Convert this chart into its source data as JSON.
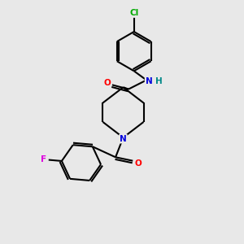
{
  "background_color": "#e8e8e8",
  "bond_color": "#000000",
  "atom_colors": {
    "N": "#0000dd",
    "O": "#ff0000",
    "Cl": "#00aa00",
    "F": "#dd00dd",
    "C": "#000000",
    "H": "#008888"
  },
  "figsize": [
    3.0,
    3.0
  ],
  "dpi": 100
}
